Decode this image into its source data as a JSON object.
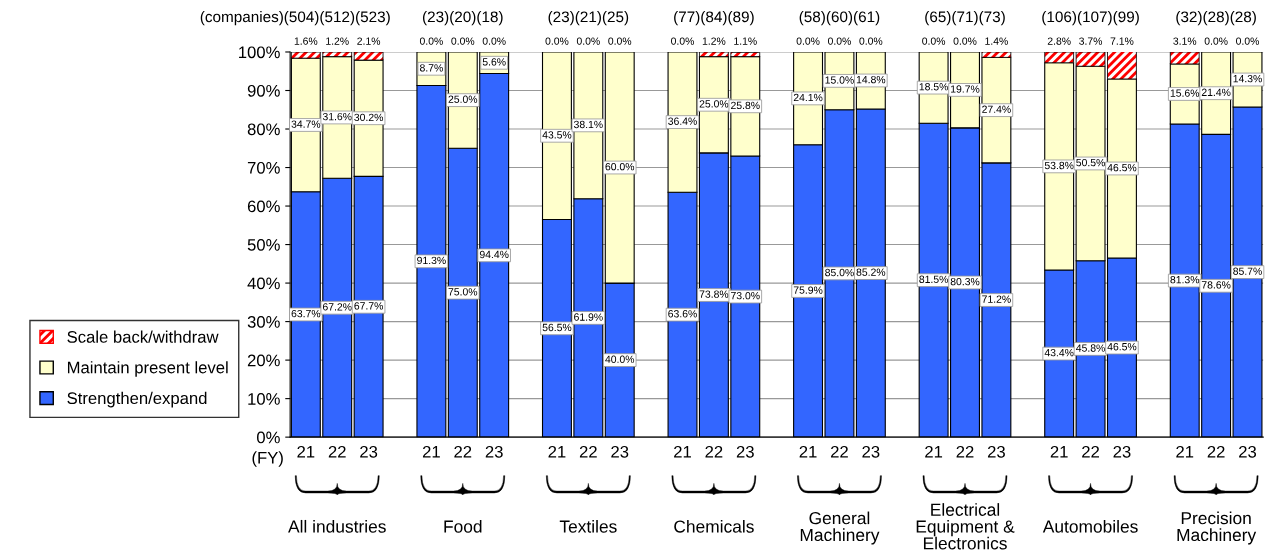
{
  "chart_data": {
    "type": "bar",
    "stacked": true,
    "grid": "y",
    "legend": "left",
    "categories": [
      "21",
      "22",
      "23",
      null,
      "21",
      "22",
      "23",
      null,
      "21",
      "22",
      "23",
      null,
      "21",
      "22",
      "23",
      null,
      "21",
      "22",
      "23",
      null,
      "21",
      "22",
      "23",
      null,
      "21",
      "22",
      "23",
      null,
      "21",
      "22",
      "23"
    ],
    "series": [
      {
        "name": "Strengthen/expand",
        "color": "#3366ff",
        "values": [
          63.7,
          67.2,
          67.7,
          null,
          91.3,
          75.0,
          94.4,
          null,
          56.5,
          61.9,
          40.0,
          null,
          63.6,
          73.8,
          73.0,
          null,
          75.9,
          85.0,
          85.2,
          null,
          81.5,
          80.3,
          71.2,
          null,
          43.4,
          45.8,
          46.5,
          null,
          81.3,
          78.6,
          85.7
        ],
        "value_labels": [
          "63.7%",
          "67.2%",
          "67.7%",
          null,
          "91.3%",
          "75.0%",
          "94.4%",
          null,
          "56.5%",
          "61.9%",
          "40.0%",
          null,
          "63.6%",
          "73.8%",
          "73.0%",
          null,
          "75.9%",
          "85.0%",
          "85.2%",
          null,
          "81.5%",
          "80.3%",
          "71.2%",
          null,
          "43.4%",
          "45.8%",
          "46.5%",
          null,
          "81.3%",
          "78.6%",
          "85.7%"
        ]
      },
      {
        "name": "Maintain present level",
        "color": "#ffffcc",
        "values": [
          34.7,
          31.6,
          30.2,
          null,
          8.7,
          25.0,
          5.6,
          null,
          43.5,
          38.1,
          60.0,
          null,
          36.4,
          25.0,
          25.8,
          null,
          24.1,
          15.0,
          14.8,
          null,
          18.5,
          19.7,
          27.4,
          null,
          53.8,
          50.5,
          46.5,
          null,
          15.6,
          21.4,
          14.3
        ],
        "value_labels": [
          "34.7%",
          "31.6%",
          "30.2%",
          null,
          "8.7%",
          "25.0%",
          "5.6%",
          null,
          "43.5%",
          "38.1%",
          "60.0%",
          null,
          "36.4%",
          "25.0%",
          "25.8%",
          null,
          "24.1%",
          "15.0%",
          "14.8%",
          null,
          "18.5%",
          "19.7%",
          "27.4%",
          null,
          "53.8%",
          "50.5%",
          "46.5%",
          null,
          "15.6%",
          "21.4%",
          "14.3%"
        ]
      },
      {
        "name": "Scale back/withdraw",
        "color": "#ff0000",
        "values": [
          1.6,
          1.2,
          2.1,
          null,
          0.0,
          0.0,
          0.0,
          null,
          0.0,
          0.0,
          0.0,
          null,
          0.0,
          1.2,
          1.1,
          null,
          0.0,
          0.0,
          0.0,
          null,
          0.0,
          0.0,
          1.4,
          null,
          2.8,
          3.7,
          7.1,
          null,
          3.1,
          0.0,
          0.0
        ],
        "value_labels": [
          "1.6%",
          "1.2%",
          "2.1%",
          null,
          "0.0%",
          "0.0%",
          "0.0%",
          null,
          "0.0%",
          "0.0%",
          "0.0%",
          null,
          "0.0%",
          "1.2%",
          "1.1%",
          null,
          "0.0%",
          "0.0%",
          "0.0%",
          null,
          "0.0%",
          "0.0%",
          "1.4%",
          null,
          "2.8%",
          "3.7%",
          "7.1%",
          null,
          "3.1%",
          "0.0%",
          "0.0%"
        ]
      }
    ],
    "ylim": [
      0,
      100
    ],
    "yticks": [
      {
        "value": 0,
        "label": "0%"
      },
      {
        "value": 10,
        "label": "10%"
      },
      {
        "value": 20,
        "label": "20%"
      },
      {
        "value": 30,
        "label": "30%"
      },
      {
        "value": 40,
        "label": "40%"
      },
      {
        "value": 50,
        "label": "50%"
      },
      {
        "value": 60,
        "label": "60%"
      },
      {
        "value": 70,
        "label": "70%"
      },
      {
        "value": 80,
        "label": "80%"
      },
      {
        "value": 90,
        "label": "90%"
      },
      {
        "value": 100,
        "label": "100%"
      }
    ],
    "annotations": [
      "(companies)",
      "(FY)",
      "(504)(512)(523)",
      "All industries",
      "(23)(20)(18)",
      "Food",
      "(23)(21)(25)",
      "Textiles",
      "(77)(84)(89)",
      "Chemicals",
      "(58)(60)(61)",
      "General\nMachinery",
      "(65)(71)(73)",
      "Electrical\nEquipment &\nElectronics",
      "(106)(107)(99)",
      "Automobiles",
      "(32)(28)(28)",
      "Precision\nMachinery"
    ]
  }
}
